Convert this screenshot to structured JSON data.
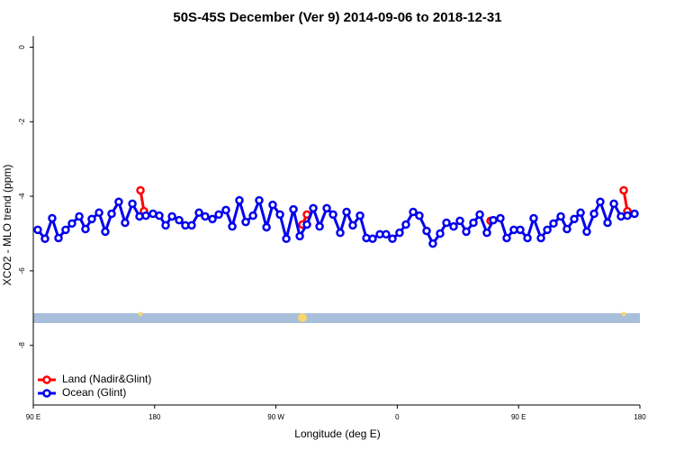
{
  "chart_data": {
    "type": "line",
    "title": "50S-45S December (Ver 9)   2014-09-06 to 2018-12-31",
    "xlabel": "Longitude (deg E)",
    "ylabel": "XCO2 - MLO trend (ppm)",
    "xlim": [
      90,
      540
    ],
    "ylim": [
      -9.6,
      0.3
    ],
    "xticks": [
      {
        "value": 90,
        "label": "90 E"
      },
      180,
      {
        "value": 270,
        "label": "90 W"
      },
      {
        "value": 360,
        "label": "0"
      },
      {
        "value": 450,
        "label": "90 E"
      },
      {
        "value": 540,
        "label": "180"
      }
    ],
    "yticks": [
      0,
      -2,
      -4,
      -6,
      -8
    ],
    "legend": "bottom-left",
    "series": [
      {
        "name": "Land (Nadir&Glint)",
        "color": "#ff0000",
        "x": [
          169.5,
          172.1,
          null,
          289.6,
          293.0,
          null,
          429.2,
          null,
          528.0,
          530.7
        ],
        "values": [
          -3.84,
          -4.4,
          null,
          -4.76,
          -4.49,
          null,
          -4.66,
          null,
          -3.84,
          -4.4
        ]
      },
      {
        "name": "Ocean (Glint)",
        "color": "#0000ee",
        "x": [
          93.3,
          98.7,
          104.0,
          108.7,
          114.0,
          118.7,
          124.1,
          128.7,
          133.4,
          138.8,
          143.4,
          148.1,
          153.4,
          158.1,
          163.5,
          168.8,
          173.5,
          178.8,
          183.5,
          188.2,
          192.9,
          198.2,
          202.8,
          207.5,
          212.9,
          217.5,
          222.9,
          227.6,
          232.9,
          237.6,
          242.9,
          247.6,
          253.0,
          257.6,
          263.0,
          267.6,
          273.0,
          277.7,
          283.0,
          287.7,
          293.0,
          297.7,
          302.4,
          307.7,
          312.4,
          317.7,
          322.4,
          327.0,
          332.4,
          337.1,
          341.7,
          347.1,
          351.7,
          356.4,
          361.7,
          366.4,
          371.8,
          376.4,
          381.8,
          386.4,
          391.8,
          396.5,
          401.8,
          406.5,
          411.2,
          416.5,
          421.2,
          426.5,
          431.2,
          436.5,
          441.2,
          446.5,
          451.2,
          456.6,
          461.2,
          466.6,
          471.3,
          475.9,
          481.3,
          485.9,
          491.3,
          496.0,
          500.6,
          506.0,
          510.6,
          516.0,
          520.7,
          526.0,
          530.7,
          536.0
        ],
        "values": [
          -4.9,
          -5.14,
          -4.59,
          -5.12,
          -4.9,
          -4.73,
          -4.54,
          -4.88,
          -4.61,
          -4.44,
          -4.95,
          -4.47,
          -4.15,
          -4.71,
          -4.2,
          -4.54,
          -4.52,
          -4.47,
          -4.52,
          -4.78,
          -4.54,
          -4.64,
          -4.78,
          -4.78,
          -4.44,
          -4.54,
          -4.61,
          -4.49,
          -4.37,
          -4.81,
          -4.11,
          -4.69,
          -4.52,
          -4.11,
          -4.83,
          -4.23,
          -4.49,
          -5.14,
          -4.35,
          -5.07,
          -4.76,
          -4.32,
          -4.81,
          -4.32,
          -4.49,
          -4.98,
          -4.42,
          -4.78,
          -4.52,
          -5.12,
          -5.14,
          -5.02,
          -5.02,
          -5.14,
          -4.98,
          -4.76,
          -4.42,
          -4.52,
          -4.93,
          -5.27,
          -5.0,
          -4.71,
          -4.81,
          -4.66,
          -4.95,
          -4.71,
          -4.49,
          -4.98,
          -4.64,
          -4.59,
          -5.12,
          -4.9,
          -4.9,
          -5.12,
          -4.59,
          -5.12,
          -4.9,
          -4.73,
          -4.54,
          -4.88,
          -4.61,
          -4.44,
          -4.95,
          -4.47,
          -4.15,
          -4.71,
          -4.2,
          -4.54,
          -4.52,
          -4.47
        ]
      }
    ]
  }
}
